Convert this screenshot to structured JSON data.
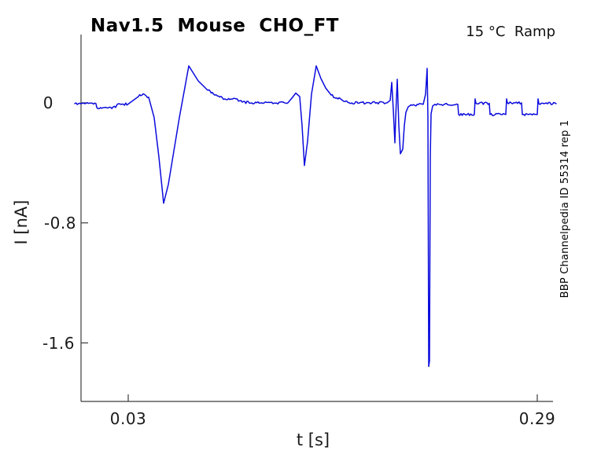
{
  "title": "Nav1.5  Mouse  CHO_FT",
  "annotation_top_right": "15 °C  Ramp",
  "watermark_right": "BBP Channelpedia ID 55314 rep 1",
  "colors": {
    "trace": "#0b0bdd",
    "axis": "#3c3c3c",
    "text": "#1a1a1a",
    "background": "#ffffff"
  },
  "chart_data": {
    "type": "line",
    "title": "Nav1.5  Mouse  CHO_FT",
    "xlabel": "t [s]",
    "ylabel": "I [nA]",
    "xlim": [
      0,
      0.3
    ],
    "ylim": [
      -1.99,
      0.455
    ],
    "xticks": [
      0.03,
      0.29
    ],
    "xtick_labels": [
      "0.03",
      "0.29"
    ],
    "yticks": [
      0,
      -0.8,
      -1.6
    ],
    "ytick_labels": [
      "0",
      "-0.8",
      "-1.6"
    ],
    "grid": false,
    "legend": null,
    "noise_nA": 0.008,
    "series": [
      {
        "name": "ramp current trace",
        "color": "#0b0bdd",
        "points": [
          [
            -0.004,
            -0.005
          ],
          [
            0.0095,
            -0.005
          ],
          [
            0.01,
            -0.031
          ],
          [
            0.022,
            -0.031
          ],
          [
            0.023,
            -0.01
          ],
          [
            0.03,
            -0.008
          ],
          [
            0.0365,
            0.042
          ],
          [
            0.0395,
            0.06
          ],
          [
            0.043,
            0.037
          ],
          [
            0.0465,
            -0.099
          ],
          [
            0.0495,
            -0.361
          ],
          [
            0.0525,
            -0.669
          ],
          [
            0.0555,
            -0.544
          ],
          [
            0.0625,
            -0.099
          ],
          [
            0.0685,
            0.246
          ],
          [
            0.0745,
            0.146
          ],
          [
            0.0805,
            0.084
          ],
          [
            0.0865,
            0.047
          ],
          [
            0.093,
            0.021
          ],
          [
            0.0985,
            0.026
          ],
          [
            0.1025,
            0.005
          ],
          [
            0.1085,
            0.0
          ],
          [
            0.1315,
            0.0
          ],
          [
            0.134,
            0.031
          ],
          [
            0.1365,
            0.065
          ],
          [
            0.139,
            0.042
          ],
          [
            0.1405,
            -0.152
          ],
          [
            0.142,
            -0.418
          ],
          [
            0.144,
            -0.256
          ],
          [
            0.1465,
            0.058
          ],
          [
            0.1495,
            0.246
          ],
          [
            0.1525,
            0.162
          ],
          [
            0.1555,
            0.099
          ],
          [
            0.159,
            0.052
          ],
          [
            0.162,
            0.031
          ],
          [
            0.164,
            0.034
          ],
          [
            0.167,
            0.01
          ],
          [
            0.1705,
            0.0
          ],
          [
            0.1945,
            0.0
          ],
          [
            0.1965,
            0.016
          ],
          [
            0.1975,
            0.136
          ],
          [
            0.1985,
            -0.047
          ],
          [
            0.1995,
            -0.267
          ],
          [
            0.2,
            -0.099
          ],
          [
            0.201,
            0.157
          ],
          [
            0.202,
            -0.152
          ],
          [
            0.203,
            -0.34
          ],
          [
            0.2045,
            -0.309
          ],
          [
            0.2055,
            -0.152
          ],
          [
            0.2065,
            -0.063
          ],
          [
            0.208,
            -0.026
          ],
          [
            0.2105,
            -0.016
          ],
          [
            0.2175,
            -0.01
          ],
          [
            0.219,
            0.058
          ],
          [
            0.22,
            0.23
          ],
          [
            0.2205,
            -0.099
          ],
          [
            0.221,
            -1.757
          ],
          [
            0.2215,
            -1.72
          ],
          [
            0.222,
            -0.361
          ],
          [
            0.2225,
            -0.073
          ],
          [
            0.2235,
            -0.021
          ],
          [
            0.225,
            -0.01
          ],
          [
            0.2395,
            -0.01
          ],
          [
            0.24,
            -0.078
          ],
          [
            0.25,
            -0.078
          ],
          [
            0.2505,
            0.026
          ],
          [
            0.251,
            -0.003
          ],
          [
            0.2595,
            -0.003
          ],
          [
            0.26,
            -0.078
          ],
          [
            0.27,
            -0.078
          ],
          [
            0.2705,
            0.026
          ],
          [
            0.271,
            0.0
          ],
          [
            0.28,
            0.0
          ],
          [
            0.2805,
            -0.078
          ],
          [
            0.29,
            -0.078
          ],
          [
            0.2905,
            0.026
          ],
          [
            0.291,
            -0.005
          ],
          [
            0.302,
            -0.005
          ]
        ]
      }
    ]
  }
}
